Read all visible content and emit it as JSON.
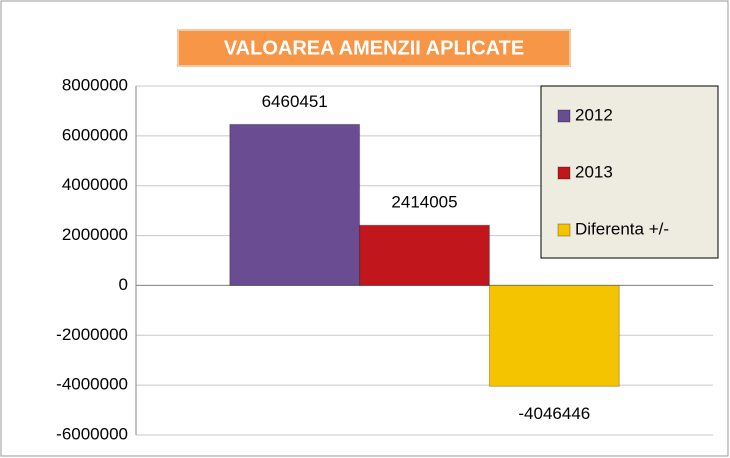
{
  "chart_data": {
    "type": "bar",
    "title": "VALOAREA AMENZII APLICATE",
    "categories": [
      null
    ],
    "series": [
      {
        "name": "2012",
        "color": "#6a4c93",
        "values": [
          6460451
        ]
      },
      {
        "name": "2013",
        "color": "#c0161c",
        "values": [
          2414005
        ]
      },
      {
        "name": "Diferenta +/-",
        "color": "#f5c400",
        "values": [
          -4046446
        ]
      }
    ],
    "ylim": [
      -6000000,
      8000000
    ],
    "yticks": [
      -6000000,
      -4000000,
      -2000000,
      0,
      2000000,
      4000000,
      6000000,
      8000000
    ],
    "grid": true,
    "legend": "right"
  }
}
